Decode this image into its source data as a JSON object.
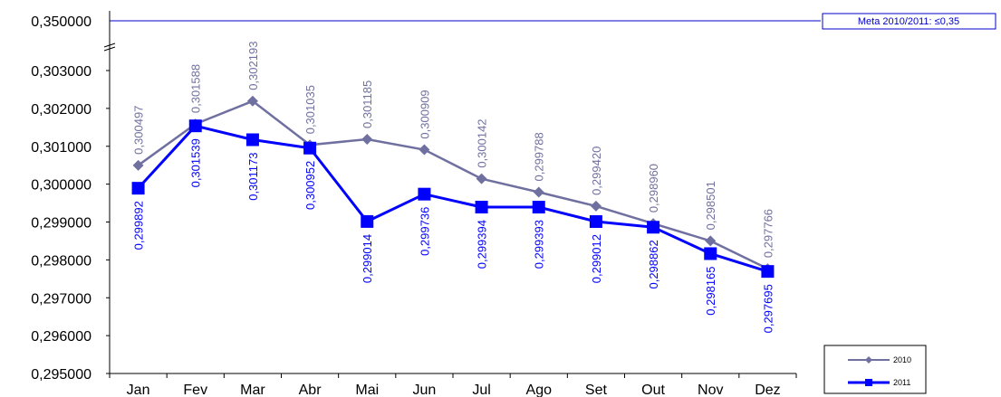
{
  "chart_data": {
    "type": "line",
    "categories": [
      "Jan",
      "Fev",
      "Mar",
      "Abr",
      "Mai",
      "Jun",
      "Jul",
      "Ago",
      "Set",
      "Out",
      "Nov",
      "Dez"
    ],
    "series": [
      {
        "name": "2010",
        "color": "#7070a0",
        "marker": "diamond",
        "values": [
          0.300497,
          0.301588,
          0.302193,
          0.301035,
          0.301185,
          0.300909,
          0.300142,
          0.299788,
          0.29942,
          0.29896,
          0.298501,
          0.297766
        ],
        "labels": [
          "0,300497",
          "0,301588",
          "0,302193",
          "0,301035",
          "0,301185",
          "0,300909",
          "0,300142",
          "0,299788",
          "0,299420",
          "0,298960",
          "0,298501",
          "0,297766"
        ]
      },
      {
        "name": "2011",
        "color": "#0000ff",
        "marker": "square",
        "values": [
          0.299892,
          0.301539,
          0.301173,
          0.300952,
          0.299014,
          0.299736,
          0.299394,
          0.299393,
          0.299012,
          0.298862,
          0.298165,
          0.297695
        ],
        "labels": [
          "0,299892",
          "0,301539",
          "0,301173",
          "0,300952",
          "0,299014",
          "0,299736",
          "0,299394",
          "0,299393",
          "0,299012",
          "0,298862",
          "0,298165",
          "0,297695"
        ]
      }
    ],
    "y_ticks": [
      {
        "value": 0.295,
        "label": "0,295000"
      },
      {
        "value": 0.296,
        "label": "0,296000"
      },
      {
        "value": 0.297,
        "label": "0,297000"
      },
      {
        "value": 0.298,
        "label": "0,298000"
      },
      {
        "value": 0.299,
        "label": "0,299000"
      },
      {
        "value": 0.3,
        "label": "0,300000"
      },
      {
        "value": 0.301,
        "label": "0,301000"
      },
      {
        "value": 0.302,
        "label": "0,302000"
      },
      {
        "value": 0.303,
        "label": "0,303000"
      }
    ],
    "ylim": [
      0.295,
      0.303
    ],
    "target": {
      "value": 0.35,
      "axis_label": "0,350000",
      "label": "Meta 2010/2011:  ≤0,35",
      "color": "#0000cc"
    },
    "xlabel": "",
    "ylabel": "",
    "grid": false,
    "legend_position": "bottom-right"
  }
}
